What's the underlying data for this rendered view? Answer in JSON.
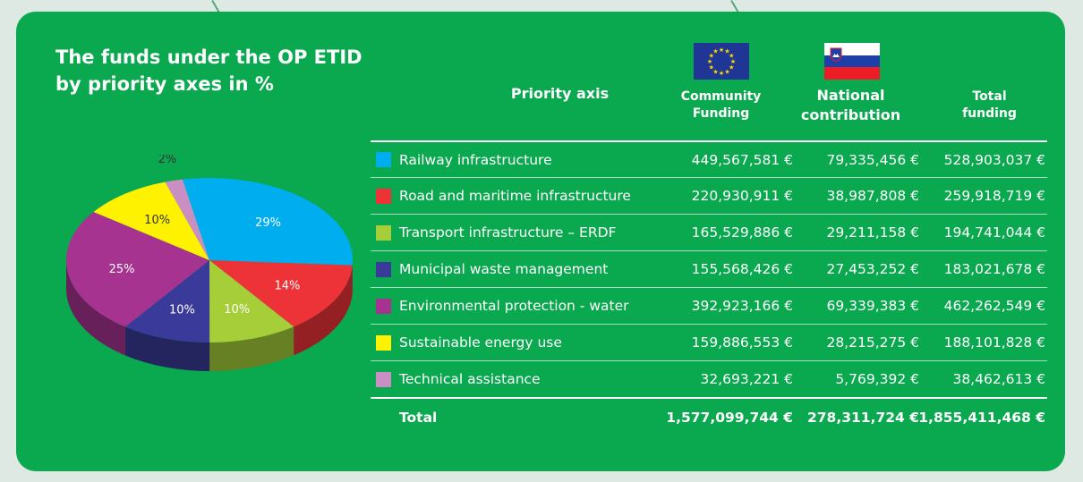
{
  "title": "The funds under the OP ETID by priority axes in %",
  "title_lines": [
    "The funds under the OP ETID",
    "by priority axes in %"
  ],
  "headers": {
    "axis": "Priority axis",
    "community": [
      "Community",
      "Funding"
    ],
    "national": [
      "National",
      "contribution"
    ],
    "total": [
      "Total",
      "funding"
    ]
  },
  "colors": {
    "panel": "#0aa84f",
    "eu_blue": "#1f3694",
    "eu_star": "#ffdd00",
    "si_white": "#ffffff",
    "si_blue": "#1f3fa8",
    "si_red": "#ee1c25"
  },
  "rows": [
    {
      "label": "Railway infrastructure",
      "color": "#00aeef",
      "community": "449,567,581 €",
      "national": "79,335,456 €",
      "total": "528,903,037 €"
    },
    {
      "label": "Road and maritime infrastructure",
      "color": "#ee3338",
      "community": "220,930,911 €",
      "national": "38,987,808 €",
      "total": "259,918,719 €"
    },
    {
      "label": "Transport infrastructure – ERDF",
      "color": "#a6ce39",
      "community": "165,529,886 €",
      "national": "29,211,158 €",
      "total": "194,741,044 €"
    },
    {
      "label": "Municipal waste management",
      "color": "#3a3a9a",
      "community": "155,568,426 €",
      "national": "27,453,252 €",
      "total": "183,021,678 €"
    },
    {
      "label": "Environmental protection - water",
      "color": "#a6338f",
      "community": "392,923,166 €",
      "national": "69,339,383 €",
      "total": "462,262,549 €"
    },
    {
      "label": "Sustainable energy use",
      "color": "#fff200",
      "community": "159,886,553 €",
      "national": "28,215,275 €",
      "total": "188,101,828 €"
    },
    {
      "label": "Technical assistance",
      "color": "#c98fc2",
      "community": "32,693,221 €",
      "national": "5,769,392 €",
      "total": "38,462,613 €"
    }
  ],
  "total_row": {
    "label": "Total",
    "community": "1,577,099,744 €",
    "national": "278,311,724 €",
    "total": "1,855,411,468 €"
  },
  "chart_data": {
    "type": "pie",
    "title": "The funds under the OP ETID by priority axes in %",
    "categories": [
      "Railway infrastructure",
      "Road and maritime infrastructure",
      "Transport infrastructure – ERDF",
      "Municipal waste management",
      "Environmental protection - water",
      "Sustainable energy use",
      "Technical assistance"
    ],
    "values": [
      29,
      14,
      10,
      10,
      25,
      10,
      2
    ],
    "labels": [
      "29%",
      "14%",
      "10%",
      "10%",
      "25%",
      "10%",
      "2%"
    ],
    "colors": [
      "#00aeef",
      "#ee3338",
      "#a6ce39",
      "#3a3a9a",
      "#a6338f",
      "#fff200",
      "#c98fc2"
    ],
    "label_colors": [
      "#ffffff",
      "#ffffff",
      "#ffffff",
      "#ffffff",
      "#ffffff",
      "#333333",
      "#333333"
    ]
  }
}
